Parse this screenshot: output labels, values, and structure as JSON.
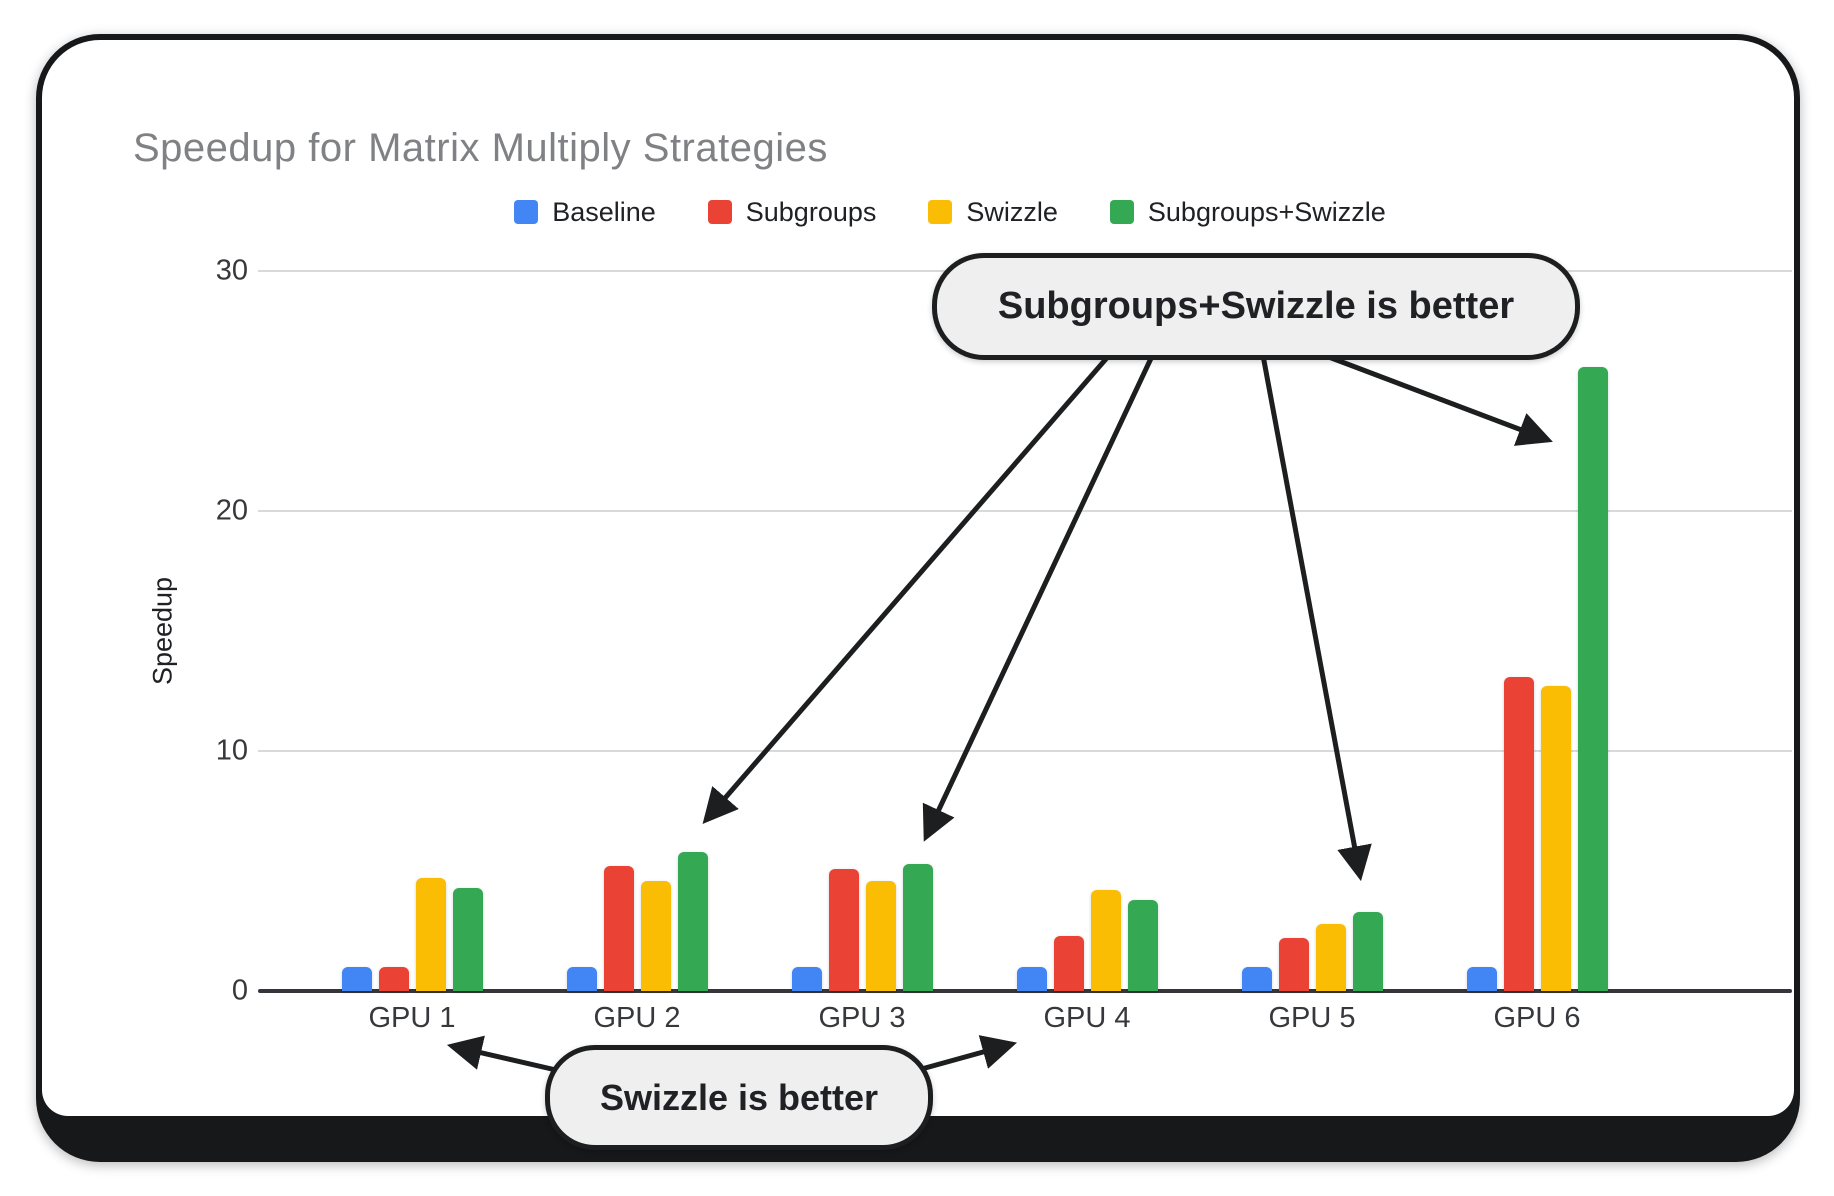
{
  "chart_data": {
    "type": "bar",
    "title": "Speedup for Matrix Multiply Strategies",
    "ylabel": "Speedup",
    "xlabel": "",
    "categories": [
      "GPU 1",
      "GPU 2",
      "GPU 3",
      "GPU 4",
      "GPU 5",
      "GPU 6"
    ],
    "series": [
      {
        "name": "Baseline",
        "color": "#4285F4",
        "values": [
          1.0,
          1.0,
          1.0,
          1.0,
          1.0,
          1.0
        ]
      },
      {
        "name": "Subgroups",
        "color": "#EA4335",
        "values": [
          1.0,
          5.2,
          5.1,
          2.3,
          2.2,
          13.1
        ]
      },
      {
        "name": "Swizzle",
        "color": "#FBBC04",
        "values": [
          4.7,
          4.6,
          4.6,
          4.2,
          2.8,
          12.7
        ]
      },
      {
        "name": "Subgroups+Swizzle",
        "color": "#34A853",
        "values": [
          4.3,
          5.8,
          5.3,
          3.8,
          3.3,
          26.0
        ]
      }
    ],
    "yticks": [
      0,
      10,
      20,
      30
    ],
    "ylim": [
      0,
      30
    ],
    "grid": true,
    "legend_position": "top-center"
  },
  "annotations": [
    {
      "text": "Subgroups+Swizzle is better",
      "shape": "rounded-pill",
      "fill": "#efefef",
      "border_color": "#1d1e1f",
      "points_to": [
        "GPU 2 Subgroups+Swizzle bar",
        "GPU 3 Subgroups+Swizzle bar",
        "GPU 5 Subgroups+Swizzle bar",
        "GPU 6 Subgroups+Swizzle bar"
      ]
    },
    {
      "text": "Swizzle is better",
      "shape": "rounded-pill",
      "fill": "#efefef",
      "border_color": "#1d1e1f",
      "points_to": [
        "GPU 1 group",
        "GPU 4 group"
      ]
    }
  ],
  "colors": {
    "title_text": "#7f8184",
    "axis_text": "#37383b",
    "legend_text": "#202124",
    "gridline": "#d9d9d9",
    "axis_line": "#33363a",
    "card_frame": "#17181a",
    "card_fill": "#ffffff",
    "callout_fill": "#efefef",
    "arrow": "#1d1e1f"
  }
}
